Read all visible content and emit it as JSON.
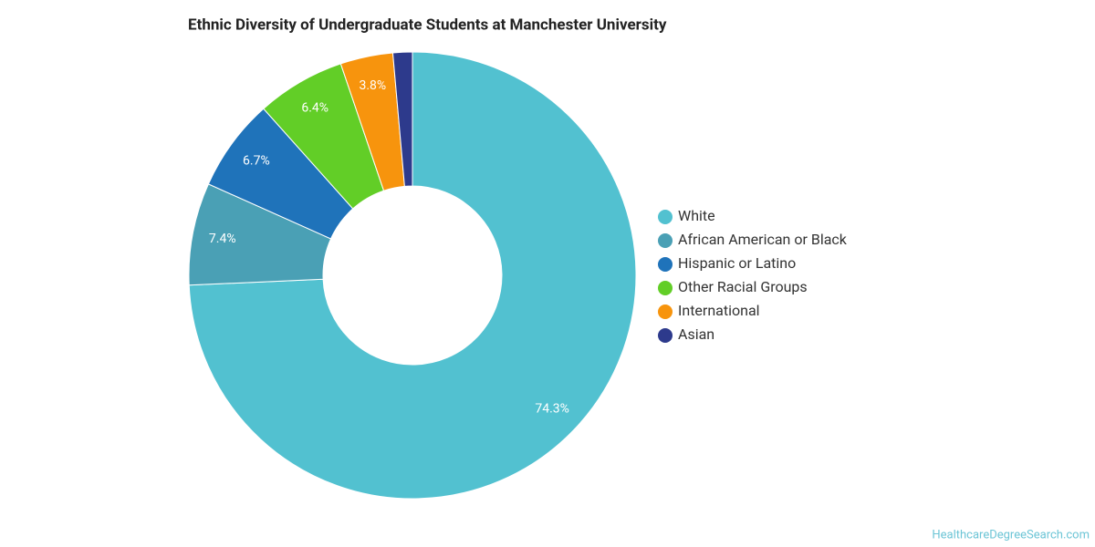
{
  "chart_data": {
    "type": "donut",
    "title": "Ethnic Diversity of Undergraduate Students at Manchester University",
    "categories": [
      "White",
      "African American or Black",
      "Hispanic or Latino",
      "Other Racial Groups",
      "International",
      "Asian"
    ],
    "values": [
      74.3,
      7.4,
      6.7,
      6.4,
      3.8,
      1.4
    ],
    "value_labels": [
      "74.3%",
      "7.4%",
      "6.7%",
      "6.4%",
      "3.8%",
      null
    ],
    "colors": [
      "#52c1d0",
      "#4aa0b5",
      "#1f73ba",
      "#62ce27",
      "#f7940d",
      "#2d3a8c"
    ],
    "legend": "right",
    "source": "HealthcareDegreeSearch.com"
  }
}
